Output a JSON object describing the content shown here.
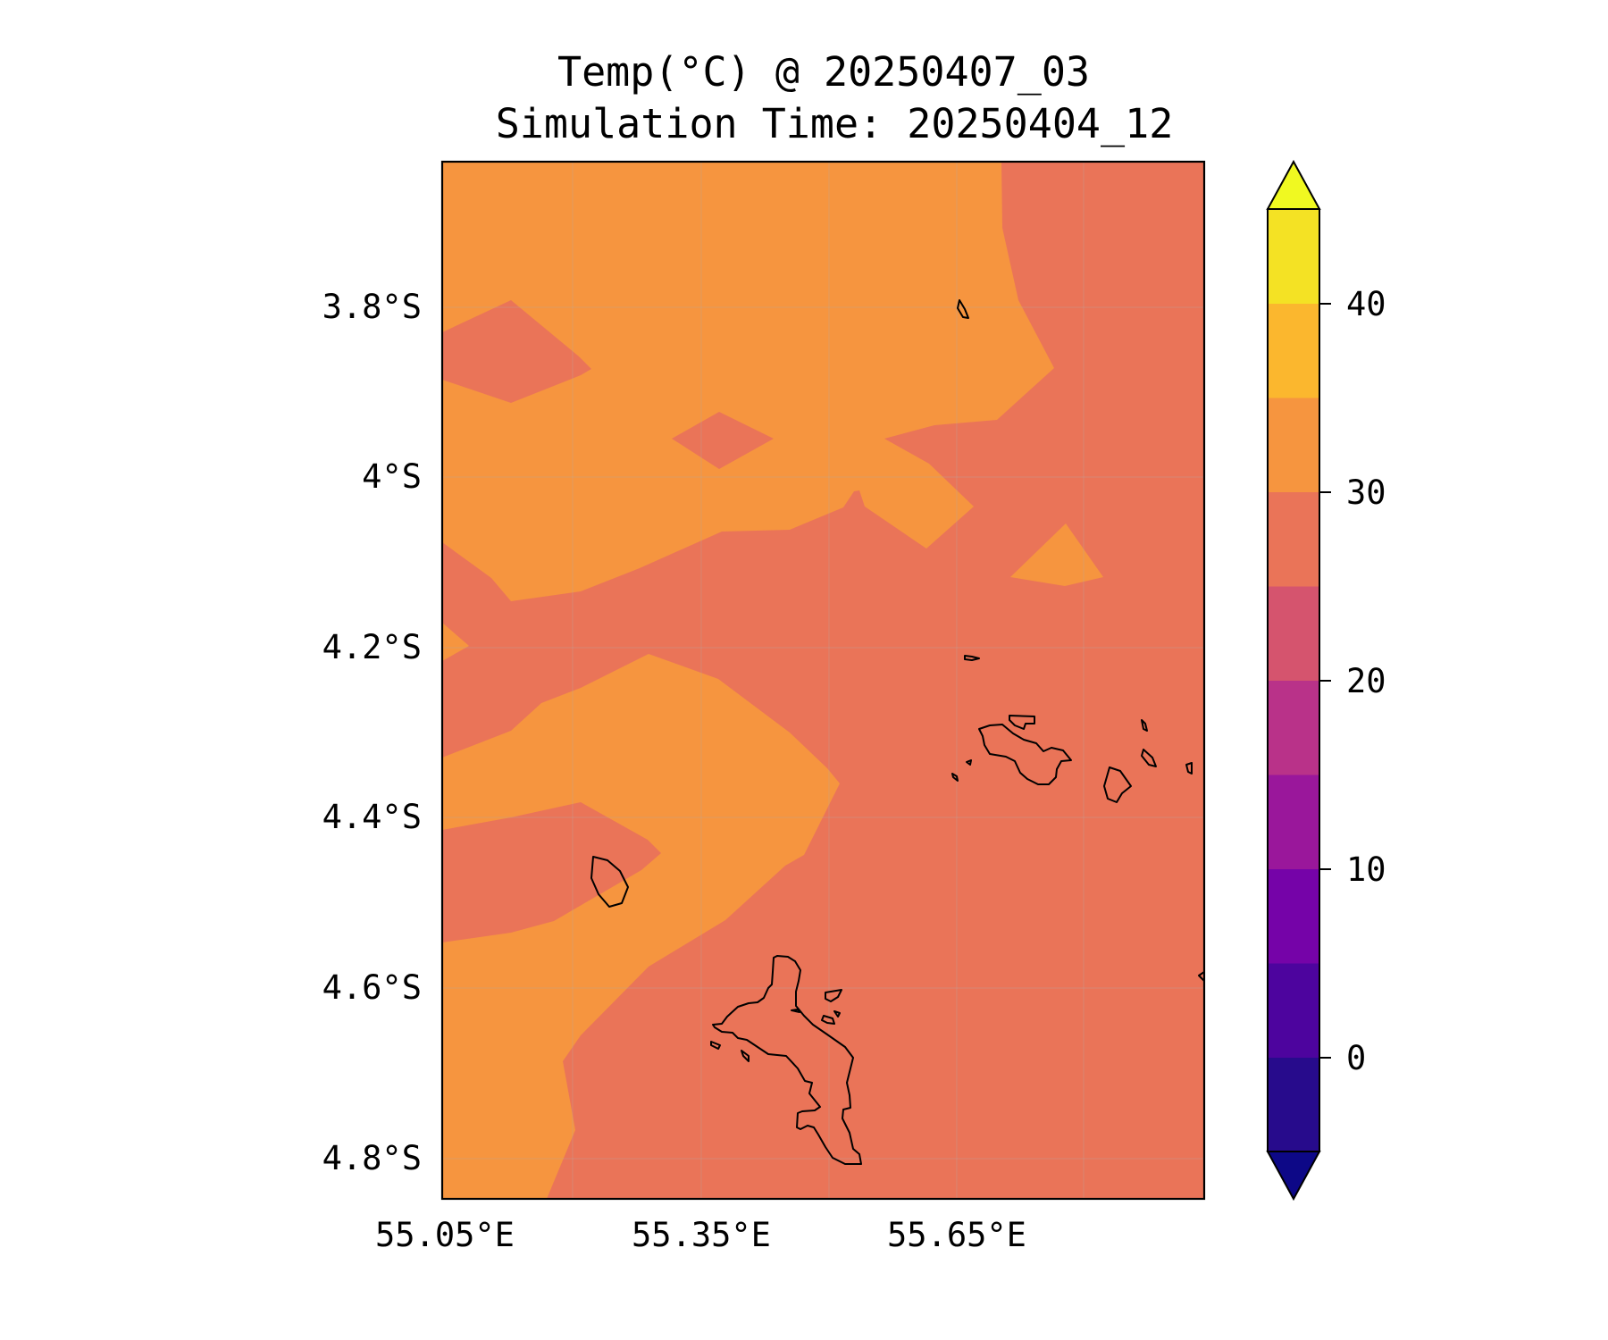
{
  "title": "Temp(°C) @ 20250407_03",
  "subtitle": "Simulation Time: 20250404_12",
  "map": {
    "lon_ticks": [
      "55.05°E",
      "55.35°E",
      "55.65°E"
    ],
    "lat_ticks": [
      "3.8°S",
      "4°S",
      "4.2°S",
      "4.4°S",
      "4.6°S",
      "4.8°S"
    ],
    "fill_colors": {
      "band_25_30": "#ea7458",
      "band_30_35": "#f6953f"
    }
  },
  "colorbar": {
    "ticks": [
      "0",
      "10",
      "20",
      "30",
      "40"
    ],
    "levels": [
      -5,
      0,
      5,
      10,
      15,
      20,
      25,
      30,
      35,
      40,
      45
    ],
    "band_colors": [
      "#270b8c",
      "#4d049e",
      "#7503a8",
      "#9a179b",
      "#b93289",
      "#d5546e",
      "#ea7458",
      "#f6953f",
      "#fbb72e",
      "#f4e224"
    ],
    "under_color": "#0d0887",
    "over_color": "#f0f921"
  }
}
